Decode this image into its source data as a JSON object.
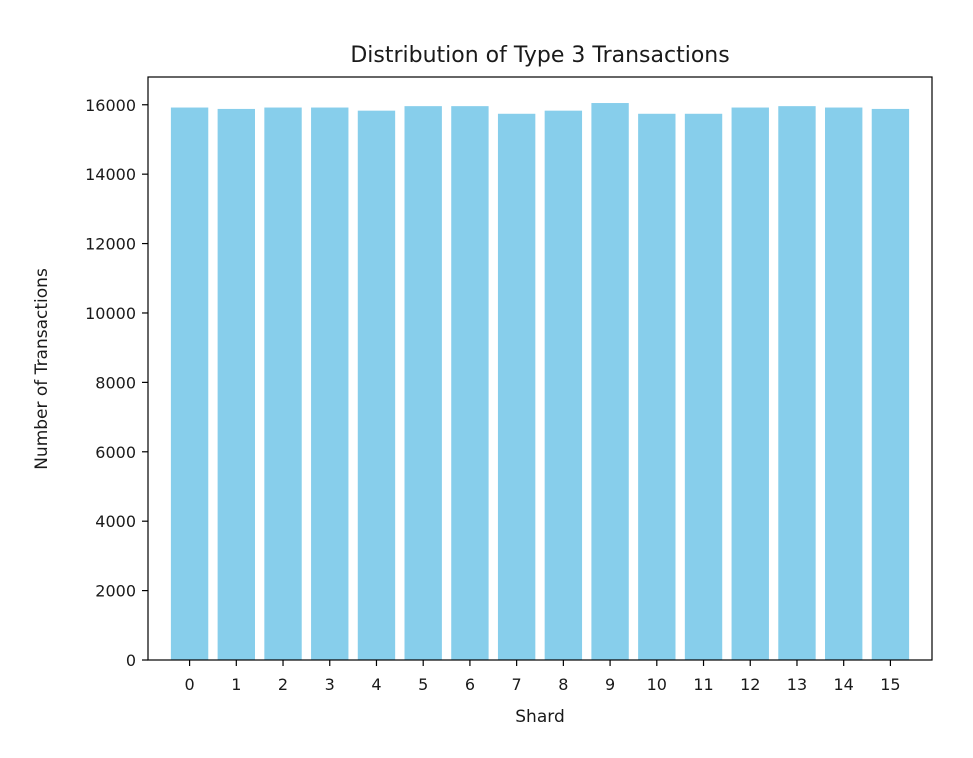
{
  "chart_data": {
    "type": "bar",
    "title": "Distribution of Type 3 Transactions",
    "xlabel": "Shard",
    "ylabel": "Number of Transactions",
    "categories": [
      "0",
      "1",
      "2",
      "3",
      "4",
      "5",
      "6",
      "7",
      "8",
      "9",
      "10",
      "11",
      "12",
      "13",
      "14",
      "15"
    ],
    "values": [
      15920,
      15880,
      15920,
      15920,
      15830,
      15960,
      15960,
      15740,
      15830,
      16050,
      15740,
      15740,
      15920,
      15960,
      15920,
      15880
    ],
    "ylim": [
      0,
      16800
    ],
    "yticks": [
      0,
      2000,
      4000,
      6000,
      8000,
      10000,
      12000,
      14000,
      16000
    ],
    "bar_color": "#87ceeb",
    "grid": false,
    "legend": "none"
  }
}
